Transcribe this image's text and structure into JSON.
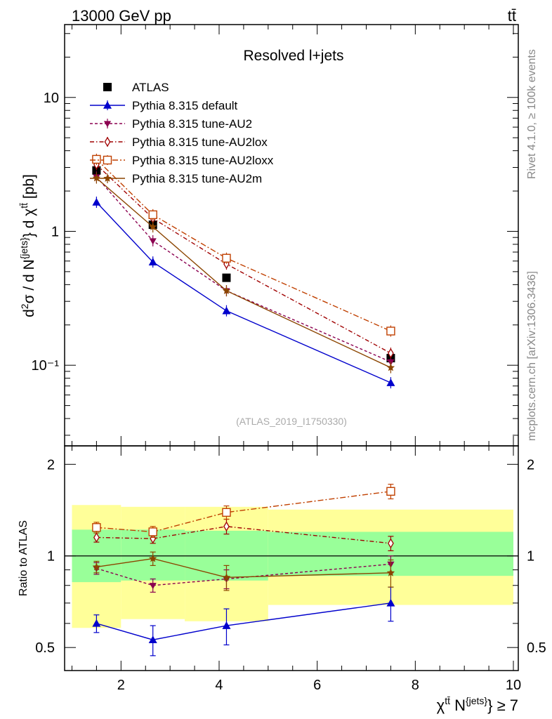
{
  "chart_data": {
    "type": "line",
    "header_left": "13000 GeV pp",
    "header_right": "tt̄",
    "title": "Resolved l+jets",
    "watermark": "(ATLAS_2019_I1750330)",
    "side_label_top": "Rivet 4.1.0, ≥ 100k events",
    "side_label_bottom": "mcplots.cern.ch [arXiv:1306.3436]",
    "ylabel_main": "d²σ / d N^{jets} d χ^{tt̄} [pb]",
    "ylabel_ratio": "Ratio to ATLAS",
    "xlabel": "χ^{tt̄} N^{jets} ≥ 7",
    "xlim": [
      0.85,
      10.1
    ],
    "ylim_main_log": [
      0.025,
      35
    ],
    "ylim_ratio_log": [
      0.42,
      2.3
    ],
    "x_ticks": [
      "2",
      "4",
      "6",
      "8",
      "10"
    ],
    "main_y_ticks": [
      "10",
      "1",
      "10⁻¹"
    ],
    "ratio_y_ticks": [
      "2",
      "1",
      "0.5"
    ],
    "ratio_y_ticks_right": [
      "2",
      "1",
      "0.5"
    ],
    "bins": [
      [
        1.0,
        2.0
      ],
      [
        2.0,
        3.3
      ],
      [
        3.3,
        5.0
      ],
      [
        5.0,
        10.0
      ]
    ],
    "band_ratio_green": [
      [
        0.82,
        1.22
      ],
      [
        0.83,
        1.22
      ],
      [
        0.83,
        1.21
      ],
      [
        0.86,
        1.2
      ]
    ],
    "band_ratio_yellow": [
      [
        0.58,
        1.47
      ],
      [
        0.62,
        1.45
      ],
      [
        0.61,
        1.45
      ],
      [
        0.69,
        1.42
      ]
    ],
    "series": [
      {
        "name": "ATLAS",
        "color": "#000000",
        "marker": "square-filled",
        "dash": "none",
        "line": false,
        "x": [
          1.5,
          2.65,
          4.15,
          7.5
        ],
        "values": [
          2.85,
          1.12,
          0.45,
          0.113
        ],
        "ratio": [
          1.0,
          1.0,
          1.0,
          1.0
        ],
        "ratio_err": [
          0,
          0,
          0,
          0
        ]
      },
      {
        "name": "Pythia 8.315 default",
        "color": "#0000cc",
        "marker": "triangle-up-filled",
        "dash": "none",
        "line": true,
        "x": [
          1.5,
          2.65,
          4.15,
          7.5
        ],
        "values": [
          1.65,
          0.59,
          0.255,
          0.074
        ],
        "ratio": [
          0.6,
          0.53,
          0.59,
          0.7
        ],
        "ratio_err": [
          0.04,
          0.06,
          0.08,
          0.09
        ]
      },
      {
        "name": "Pythia 8.315 tune-AU2",
        "color": "#8b0050",
        "marker": "triangle-down-filled",
        "dash": "4,3",
        "line": true,
        "x": [
          1.5,
          2.65,
          4.15,
          7.5
        ],
        "values": [
          2.55,
          0.85,
          0.36,
          0.106
        ],
        "ratio": [
          0.91,
          0.8,
          0.84,
          0.94
        ],
        "ratio_err": [
          0.04,
          0.04,
          0.06,
          0.06
        ]
      },
      {
        "name": "Pythia 8.315 tune-AU2lox",
        "color": "#a00000",
        "marker": "diamond-open",
        "dash": "6,3,1.5,3",
        "line": true,
        "x": [
          1.5,
          2.65,
          4.15,
          7.5
        ],
        "values": [
          3.15,
          1.25,
          0.57,
          0.123
        ],
        "ratio": [
          1.15,
          1.14,
          1.25,
          1.1
        ],
        "ratio_err": [
          0.04,
          0.04,
          0.07,
          0.06
        ]
      },
      {
        "name": "Pythia 8.315 tune-AU2loxx",
        "color": "#c04000",
        "marker": "square-open",
        "dash": "8,3,2,3",
        "line": true,
        "x": [
          1.5,
          2.65,
          4.15,
          7.5
        ],
        "values": [
          3.45,
          1.33,
          0.63,
          0.18
        ],
        "ratio": [
          1.24,
          1.2,
          1.39,
          1.63
        ],
        "ratio_err": [
          0.05,
          0.05,
          0.07,
          0.09
        ]
      },
      {
        "name": "Pythia 8.315 tune-AU2m",
        "color": "#8b4500",
        "marker": "star",
        "dash": "none",
        "line": true,
        "x": [
          1.5,
          2.65,
          4.15,
          7.5
        ],
        "values": [
          2.5,
          1.08,
          0.36,
          0.096
        ],
        "ratio": [
          0.92,
          0.98,
          0.85,
          0.88
        ],
        "ratio_err": [
          0.04,
          0.05,
          0.08,
          0.09
        ]
      }
    ]
  }
}
